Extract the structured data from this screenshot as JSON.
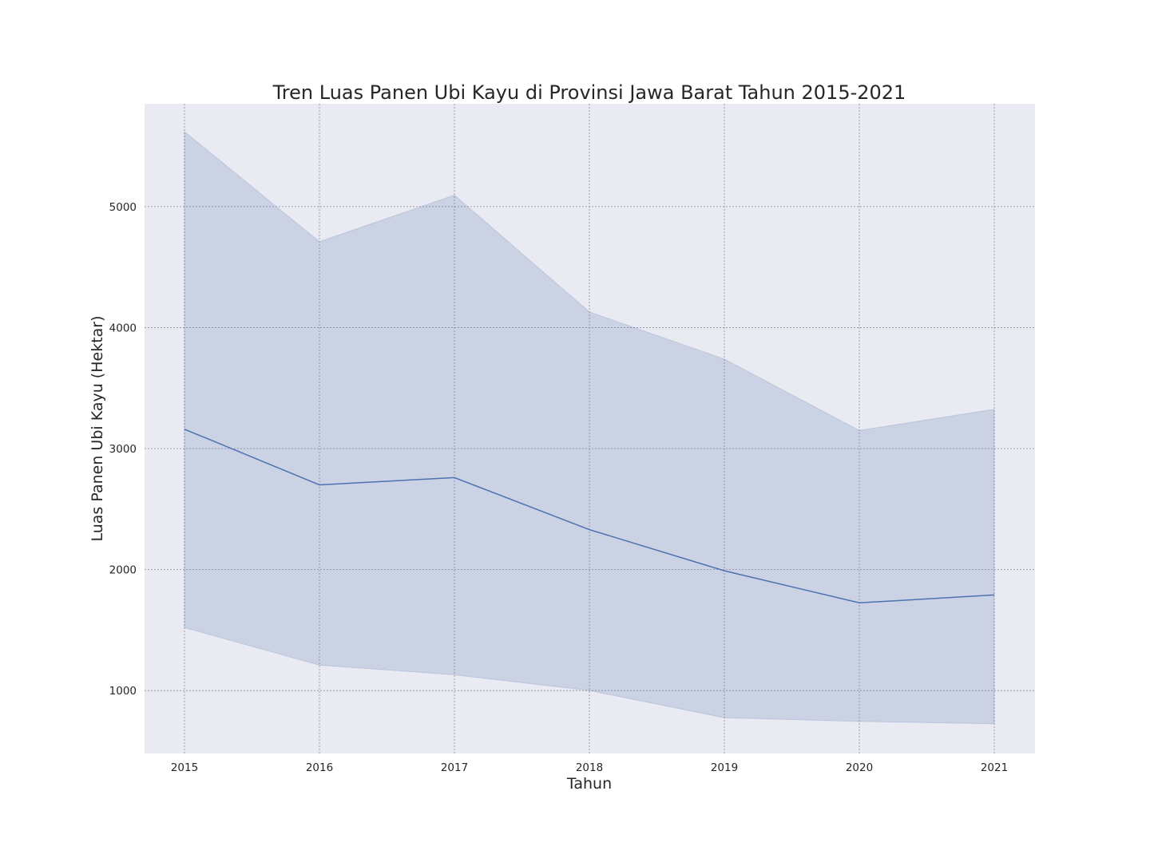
{
  "chart_data": {
    "type": "line",
    "title": "Tren Luas Panen Ubi Kayu di Provinsi Jawa Barat Tahun 2015-2021",
    "xlabel": "Tahun",
    "ylabel": "Luas Panen Ubi Kayu (Hektar)",
    "x": [
      "2015",
      "2016",
      "2017",
      "2018",
      "2019",
      "2020",
      "2021"
    ],
    "series": [
      {
        "values": [
          3160,
          2700,
          2760,
          2330,
          1990,
          1725,
          1790
        ],
        "band_upper": [
          5620,
          4710,
          5095,
          4130,
          3740,
          3150,
          3325
        ],
        "band_lower": [
          1520,
          1210,
          1130,
          1000,
          775,
          745,
          725
        ]
      }
    ],
    "yticks": [
      1000,
      2000,
      3000,
      4000,
      5000
    ],
    "ylim": [
      480,
      5850
    ],
    "grid": true,
    "colors": {
      "background": "#eaeaf2",
      "line": "#4c72b0",
      "band": "#4c72b0",
      "grid": "#8c8c96"
    }
  }
}
